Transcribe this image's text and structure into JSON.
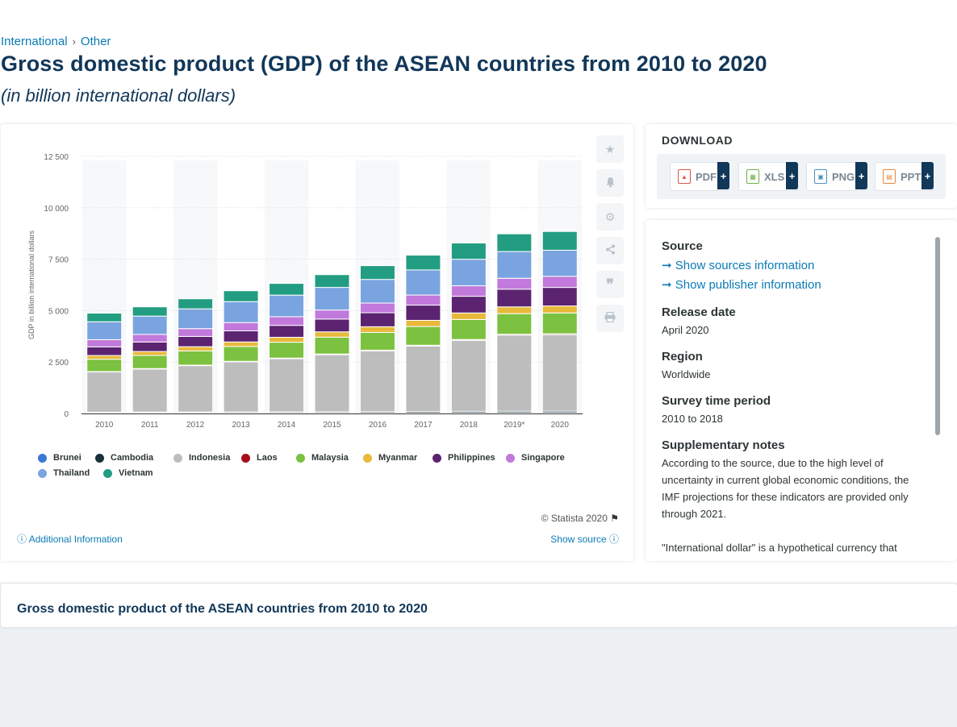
{
  "breadcrumb": {
    "items": [
      "International",
      "Other"
    ],
    "separator": "›"
  },
  "page": {
    "title": "Gross domestic product (GDP) of the ASEAN countries from 2010 to 2020",
    "subtitle": "(in billion international dollars)"
  },
  "chart_data": {
    "type": "bar",
    "stacked": true,
    "ylabel": "GDP in billion international dollars",
    "xlabel": "",
    "ylim": [
      0,
      12500
    ],
    "yticks": [
      0,
      2500,
      5000,
      7500,
      10000,
      12500
    ],
    "ytick_labels": [
      "0",
      "2 500",
      "5 000",
      "7 500",
      "10 000",
      "12 500"
    ],
    "grid": true,
    "legend_position": "bottom",
    "categories": [
      "2010",
      "2011",
      "2012",
      "2013",
      "2014",
      "2015",
      "2016",
      "2017",
      "2018",
      "2019*",
      "2020"
    ],
    "series": [
      {
        "name": "Brunei",
        "color": "#3a78d6",
        "values": [
          30,
          30,
          31,
          31,
          31,
          31,
          32,
          33,
          34,
          35,
          36
        ]
      },
      {
        "name": "Cambodia",
        "color": "#1a2f3c",
        "values": [
          36,
          40,
          44,
          48,
          52,
          56,
          61,
          66,
          72,
          74,
          76
        ]
      },
      {
        "name": "Indonesia",
        "color": "#bdbdbd",
        "values": [
          1950,
          2090,
          2250,
          2430,
          2580,
          2770,
          2950,
          3180,
          3450,
          3700,
          3720
        ]
      },
      {
        "name": "Laos",
        "color": "#a80d19",
        "values": [
          22,
          24,
          26,
          28,
          31,
          34,
          36,
          39,
          42,
          44,
          46
        ]
      },
      {
        "name": "Malaysia",
        "color": "#7cc13f",
        "values": [
          600,
          640,
          690,
          720,
          770,
          820,
          860,
          910,
          970,
          1000,
          1010
        ]
      },
      {
        "name": "Myanmar",
        "color": "#e8b93a",
        "values": [
          180,
          190,
          205,
          220,
          240,
          258,
          278,
          300,
          320,
          330,
          340
        ]
      },
      {
        "name": "Philippines",
        "color": "#5b2370",
        "values": [
          420,
          460,
          500,
          540,
          580,
          620,
          680,
          740,
          810,
          860,
          900
        ]
      },
      {
        "name": "Singapore",
        "color": "#c179db",
        "values": [
          350,
          370,
          380,
          400,
          420,
          440,
          470,
          490,
          510,
          530,
          540
        ]
      },
      {
        "name": "Thailand",
        "color": "#7aa4e0",
        "values": [
          870,
          890,
          960,
          1020,
          1050,
          1100,
          1150,
          1220,
          1290,
          1300,
          1270
        ]
      },
      {
        "name": "Vietnam",
        "color": "#239d81",
        "values": [
          420,
          450,
          490,
          530,
          570,
          620,
          670,
          720,
          790,
          860,
          910
        ]
      }
    ]
  },
  "chart_tools": [
    "star-icon",
    "bell-icon",
    "gear-icon",
    "share-icon",
    "quote-icon",
    "print-icon"
  ],
  "chart_footer": {
    "credit": "© Statista 2020",
    "additional_info": "Additional Information",
    "show_source": "Show source"
  },
  "download": {
    "heading": "DOWNLOAD",
    "buttons": [
      {
        "label": "PDF",
        "color": "#d9534f"
      },
      {
        "label": "XLS",
        "color": "#6cb24a"
      },
      {
        "label": "PNG",
        "color": "#4a90c2"
      },
      {
        "label": "PPT",
        "color": "#e8863a"
      }
    ],
    "plus": "+"
  },
  "info": {
    "source_heading": "Source",
    "show_sources": "Show sources information",
    "show_publisher": "Show publisher information",
    "release_heading": "Release date",
    "release_value": "April 2020",
    "region_heading": "Region",
    "region_value": "Worldwide",
    "survey_heading": "Survey time period",
    "survey_value": "2010 to 2018",
    "notes_heading": "Supplementary notes",
    "notes_text": "According to the source, due to the high level of uncertainty in current global economic conditions, the IMF projections for these indicators are provided only through 2021.",
    "notes_text_2": "\"International dollar\" is a hypothetical currency that"
  },
  "bottom": {
    "title": "Gross domestic product of the ASEAN countries from 2010 to 2020"
  }
}
